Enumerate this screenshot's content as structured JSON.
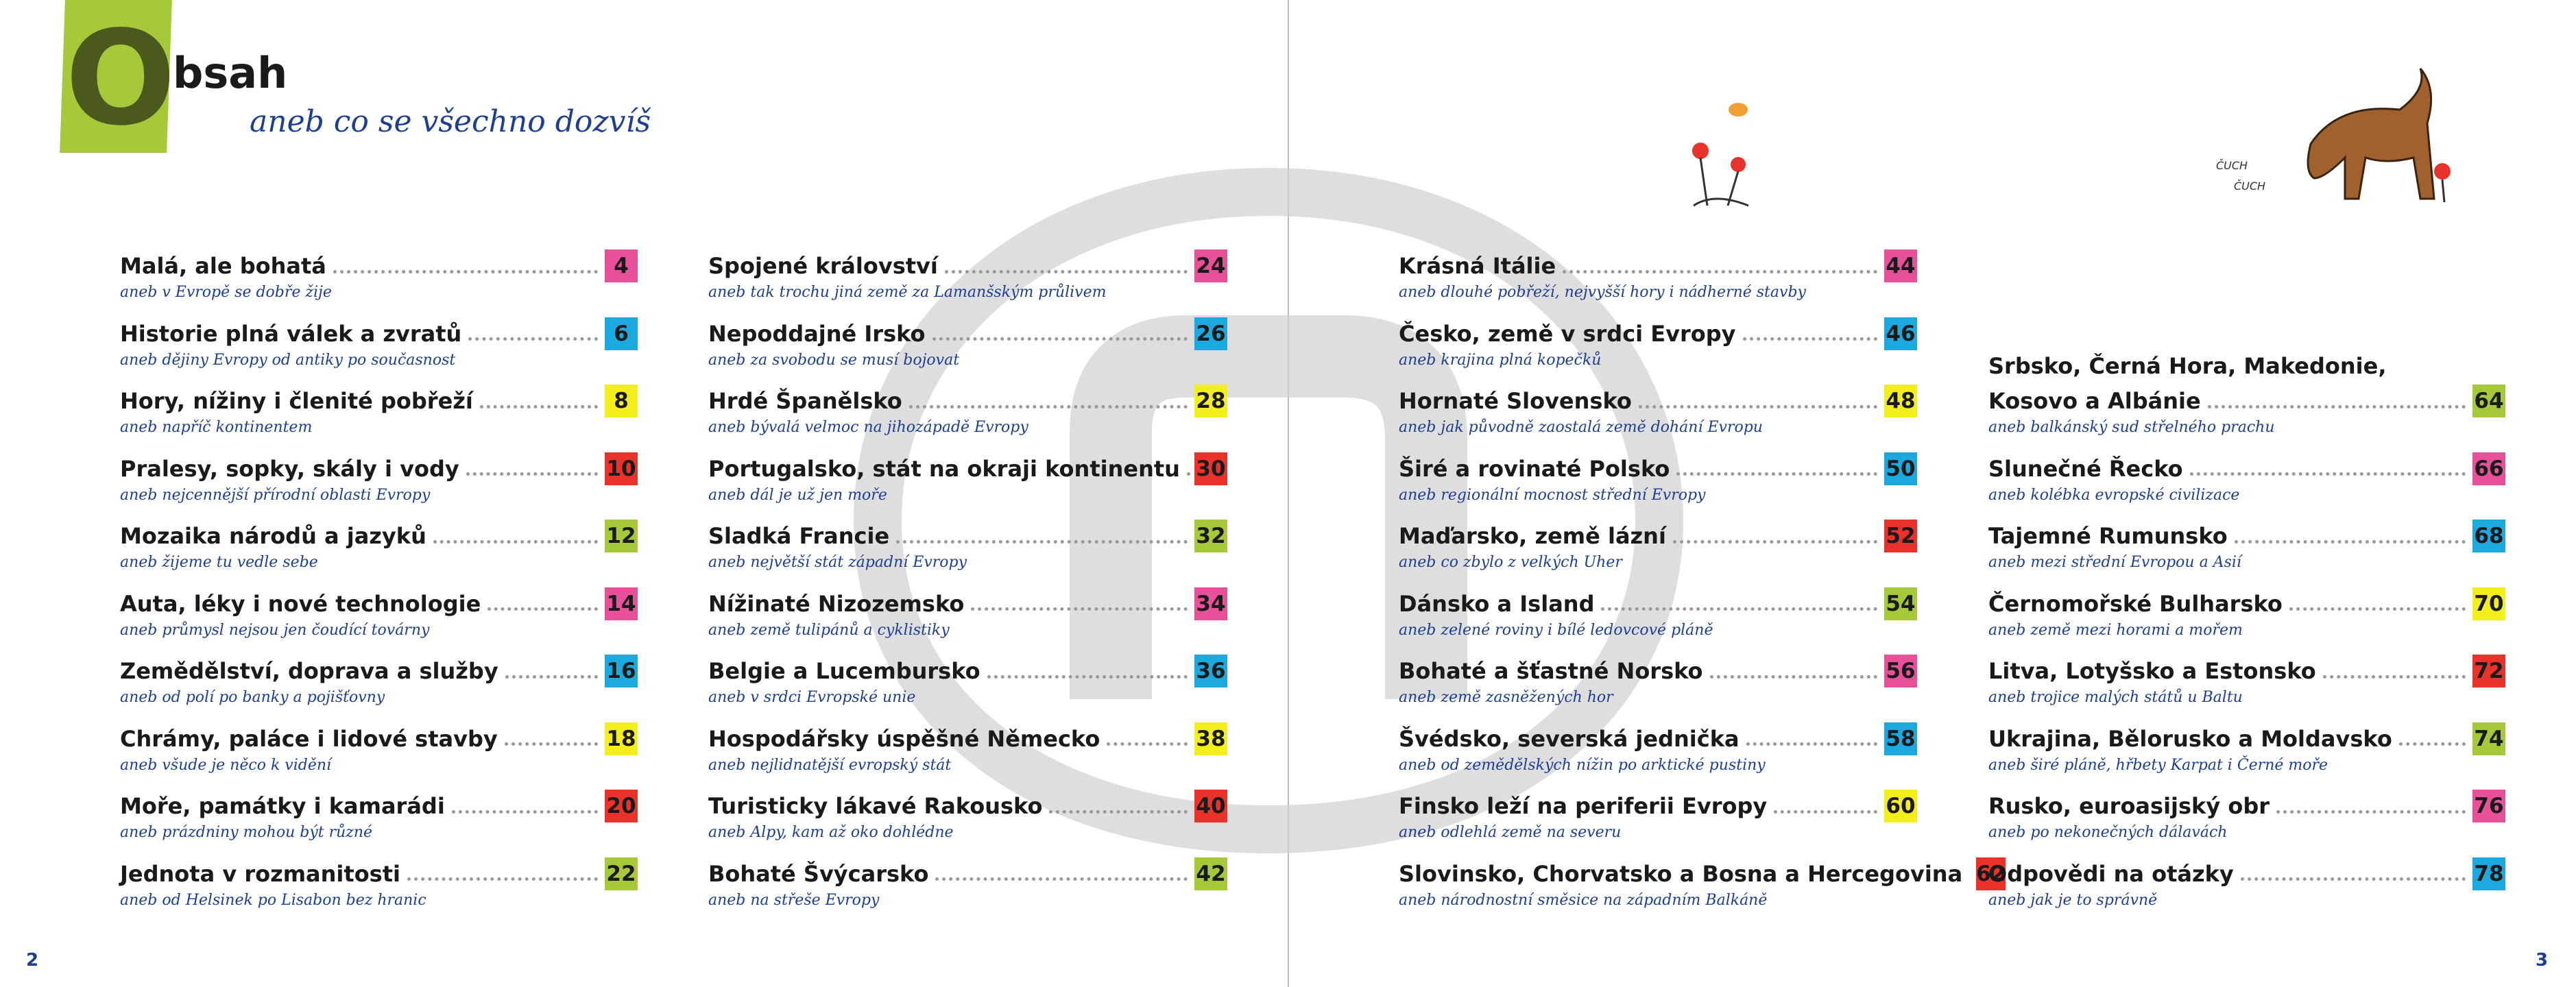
{
  "header": {
    "initial": "O",
    "title": "bsah",
    "subtitle": "aneb co se všechno dozvíš"
  },
  "illustration_text": [
    "ČUCH",
    "ČUCH"
  ],
  "page_numbers": [
    2,
    3
  ],
  "columns": [
    [
      {
        "title": "Malá, ale bohatá",
        "subtitle": "aneb v Evropě se dobře žije",
        "page": 4,
        "color": "#e8509a"
      },
      {
        "title": "Historie plná válek a zvratů",
        "subtitle": "aneb dějiny Evropy od antiky po současnost",
        "page": 6,
        "color": "#1ba9e0"
      },
      {
        "title": "Hory, nížiny i členité pobřeží",
        "subtitle": "aneb napříč kontinentem",
        "page": 8,
        "color": "#f4ee1a"
      },
      {
        "title": "Pralesy, sopky, skály i vody",
        "subtitle": "aneb nejcennější přírodní oblasti Evropy",
        "page": 10,
        "color": "#e8322a"
      },
      {
        "title": "Mozaika národů a jazyků",
        "subtitle": "aneb žijeme tu vedle sebe",
        "page": 12,
        "color": "#a6c93a"
      },
      {
        "title": "Auta, léky i nové technologie",
        "subtitle": "aneb průmysl nejsou jen čoudící továrny",
        "page": 14,
        "color": "#e8509a"
      },
      {
        "title": "Zemědělství, doprava a služby",
        "subtitle": "aneb od polí po banky a pojišťovny",
        "page": 16,
        "color": "#1ba9e0"
      },
      {
        "title": "Chrámy, paláce i lidové stavby",
        "subtitle": "aneb všude je něco k vidění",
        "page": 18,
        "color": "#f4ee1a"
      },
      {
        "title": "Moře, památky i kamarádi",
        "subtitle": "aneb prázdniny mohou být různé",
        "page": 20,
        "color": "#e8322a"
      },
      {
        "title": "Jednota v rozmanitosti",
        "subtitle": "aneb od Helsinek po Lisabon bez hranic",
        "page": 22,
        "color": "#a6c93a"
      }
    ],
    [
      {
        "title": "Spojené království",
        "subtitle": "aneb tak trochu jiná země za Lamanšským průlivem",
        "page": 24,
        "color": "#e8509a"
      },
      {
        "title": "Nepoddajné Irsko",
        "subtitle": "aneb za svobodu se musí bojovat",
        "page": 26,
        "color": "#1ba9e0"
      },
      {
        "title": "Hrdé Španělsko",
        "subtitle": "aneb bývalá velmoc na jihozápadě Evropy",
        "page": 28,
        "color": "#f4ee1a"
      },
      {
        "title": "Portugalsko, stát na okraji kontinentu",
        "subtitle": "aneb dál je už jen moře",
        "page": 30,
        "color": "#e8322a"
      },
      {
        "title": "Sladká Francie",
        "subtitle": "aneb největší stát západní Evropy",
        "page": 32,
        "color": "#a6c93a"
      },
      {
        "title": "Nížinaté Nizozemsko",
        "subtitle": "aneb země tulipánů a cyklistiky",
        "page": 34,
        "color": "#e8509a"
      },
      {
        "title": "Belgie a Lucembursko",
        "subtitle": "aneb v srdci Evropské unie",
        "page": 36,
        "color": "#1ba9e0"
      },
      {
        "title": "Hospodářsky úspěšné Německo",
        "subtitle": "aneb nejlidnatější evropský stát",
        "page": 38,
        "color": "#f4ee1a"
      },
      {
        "title": "Turisticky lákavé Rakousko",
        "subtitle": "aneb Alpy, kam až oko dohlédne",
        "page": 40,
        "color": "#e8322a"
      },
      {
        "title": "Bohaté Švýcarsko",
        "subtitle": "aneb na střeše Evropy",
        "page": 42,
        "color": "#a6c93a"
      }
    ],
    [
      {
        "title": "Krásná Itálie",
        "subtitle": "aneb dlouhé pobřeží, nejvyšší hory i nádherné stavby",
        "page": 44,
        "color": "#e8509a"
      },
      {
        "title": "Česko, země v srdci Evropy",
        "subtitle": "aneb krajina plná kopečků",
        "page": 46,
        "color": "#1ba9e0"
      },
      {
        "title": "Hornaté Slovensko",
        "subtitle": "aneb jak původně zaostalá země dohání Evropu",
        "page": 48,
        "color": "#f4ee1a"
      },
      {
        "title": "Širé a rovinaté Polsko",
        "subtitle": "aneb regionální mocnost střední Evropy",
        "page": 50,
        "color": "#1ba9e0"
      },
      {
        "title": "Maďarsko, země lázní",
        "subtitle": "aneb co zbylo z velkých Uher",
        "page": 52,
        "color": "#e8322a"
      },
      {
        "title": "Dánsko a Island",
        "subtitle": "aneb zelené roviny i bílé ledovcové pláně",
        "page": 54,
        "color": "#a6c93a"
      },
      {
        "title": "Bohaté a šťastné Norsko",
        "subtitle": "aneb země zasněžených hor",
        "page": 56,
        "color": "#e8509a"
      },
      {
        "title": "Švédsko, severská jednička",
        "subtitle": "aneb od zemědělských nížin po arktické pustiny",
        "page": 58,
        "color": "#1ba9e0"
      },
      {
        "title": "Finsko leží na periferii Evropy",
        "subtitle": "aneb odlehlá země na severu",
        "page": 60,
        "color": "#f4ee1a"
      },
      {
        "title": "Slovinsko, Chorvatsko a Bosna a Hercegovina",
        "subtitle": "aneb národnostní směsice na západním Balkáně",
        "page": 62,
        "color": "#e8322a"
      }
    ],
    [
      {
        "title": [
          "Srbsko, Černá Hora, Makedonie,",
          "Kosovo a Albánie"
        ],
        "subtitle": "aneb balkánský sud střelného prachu",
        "page": 64,
        "color": "#a6c93a"
      },
      {
        "title": "Slunečné Řecko",
        "subtitle": "aneb kolébka evropské civilizace",
        "page": 66,
        "color": "#e8509a"
      },
      {
        "title": "Tajemné Rumunsko",
        "subtitle": "aneb mezi střední Evropou a Asií",
        "page": 68,
        "color": "#1ba9e0"
      },
      {
        "title": "Černomořské Bulharsko",
        "subtitle": "aneb země mezi horami a mořem",
        "page": 70,
        "color": "#f4ee1a"
      },
      {
        "title": "Litva, Lotyšsko a Estonsko",
        "subtitle": "aneb trojice malých států u Baltu",
        "page": 72,
        "color": "#e8322a"
      },
      {
        "title": "Ukrajina, Bělorusko a Moldavsko",
        "subtitle": "aneb širé pláně, hřbety Karpat i Černé moře",
        "page": 74,
        "color": "#a6c93a"
      },
      {
        "title": "Rusko, euroasijský obr",
        "subtitle": "aneb po nekonečných dálavách",
        "page": 76,
        "color": "#e8509a"
      },
      {
        "title": "Odpovědi na otázky",
        "subtitle": "aneb jak je to správně",
        "page": 78,
        "color": "#1ba9e0"
      }
    ]
  ]
}
